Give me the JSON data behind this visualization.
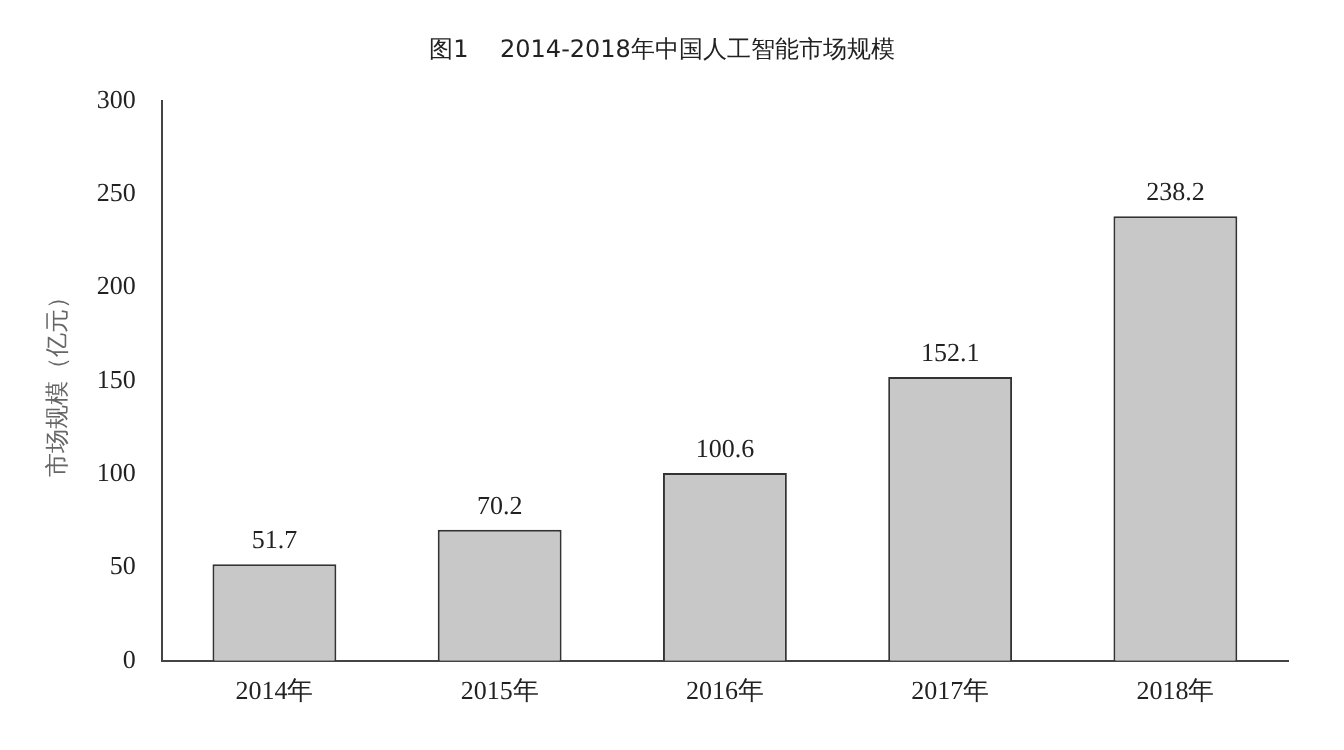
{
  "chart_data": {
    "type": "bar",
    "title": "图1　 2014-2018年中国人工智能市场规模",
    "ylabel": "市场规模（亿元）",
    "categories": [
      "2014年",
      "2015年",
      "2016年",
      "2017年",
      "2018年"
    ],
    "values": [
      51.7,
      70.2,
      100.6,
      152.1,
      238.2
    ],
    "color": "#c8c8c8",
    "ylim": [
      0,
      300
    ],
    "yticks": [
      0,
      50,
      100,
      150,
      200,
      250,
      300
    ],
    "grid": false,
    "legend": false,
    "data_labels": true
  }
}
